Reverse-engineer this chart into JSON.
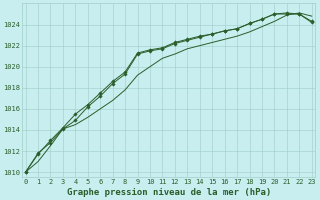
{
  "title": "Graphe pression niveau de la mer (hPa)",
  "x_values": [
    0,
    1,
    2,
    3,
    4,
    5,
    6,
    7,
    8,
    9,
    10,
    11,
    12,
    13,
    14,
    15,
    16,
    17,
    18,
    19,
    20,
    21,
    22,
    23
  ],
  "line1": [
    1010,
    1011.8,
    1012.8,
    1014.1,
    1014.9,
    1016.2,
    1017.2,
    1018.4,
    1019.3,
    1021.2,
    1021.5,
    1021.7,
    1022.2,
    1022.5,
    1022.8,
    1023.1,
    1023.4,
    1023.6,
    1024.1,
    1024.5,
    1025.0,
    1025.0,
    1025.0,
    1024.2
  ],
  "line2": [
    1010,
    1011.7,
    1013.0,
    1014.2,
    1015.5,
    1016.4,
    1017.5,
    1018.6,
    1019.5,
    1021.3,
    1021.6,
    1021.8,
    1022.3,
    1022.6,
    1022.9,
    1023.1,
    1023.4,
    1023.6,
    1024.1,
    1024.5,
    1025.0,
    1025.1,
    1025.0,
    1024.3
  ],
  "line3": [
    1010,
    1011.0,
    1012.5,
    1014.1,
    1014.5,
    1015.2,
    1016.0,
    1016.8,
    1017.8,
    1019.2,
    1020.0,
    1020.8,
    1021.2,
    1021.7,
    1022.0,
    1022.3,
    1022.6,
    1022.9,
    1023.3,
    1023.8,
    1024.3,
    1024.9,
    1025.1,
    1024.8
  ],
  "ylim": [
    1009.5,
    1026.0
  ],
  "yticks": [
    1010,
    1012,
    1014,
    1016,
    1018,
    1020,
    1022,
    1024
  ],
  "xticks": [
    0,
    1,
    2,
    3,
    4,
    5,
    6,
    7,
    8,
    9,
    10,
    11,
    12,
    13,
    14,
    15,
    16,
    17,
    18,
    19,
    20,
    21,
    22,
    23
  ],
  "line_color": "#2a5e2a",
  "bg_color": "#c8eef0",
  "grid_color": "#a0cdc8",
  "label_color": "#2a5e2a",
  "title_fontsize": 6.5,
  "tick_fontsize": 5.0
}
